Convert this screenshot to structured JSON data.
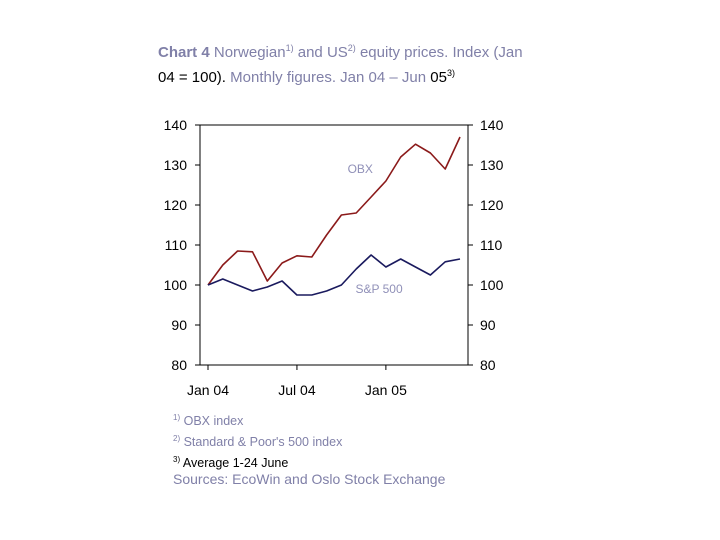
{
  "title": {
    "part1": "Chart 4",
    "part2": " Norwegian",
    "sup1": "1)",
    "part3": " and US",
    "sup2": "2)",
    "part4": " equity prices. Index (Jan",
    "part5": " 04 = 100).",
    "part6": " Monthly figures. Jan 04 – Jun",
    "part7": " 05",
    "sup3": "3)"
  },
  "notes": [
    {
      "sup": "1)",
      "text": " OBX index"
    },
    {
      "sup": "2)",
      "text": " Standard & Poor's 500 index"
    },
    {
      "sup": "3)",
      "text": " Average 1-24 June"
    }
  ],
  "sources": "Sources: EcoWin and Oslo Stock Exchange",
  "chart_data": {
    "type": "line",
    "x": [
      "Jan 04",
      "Feb 04",
      "Mar 04",
      "Apr 04",
      "May 04",
      "Jun 04",
      "Jul 04",
      "Aug 04",
      "Sep 04",
      "Oct 04",
      "Nov 04",
      "Dec 04",
      "Jan 05",
      "Feb 05",
      "Mar 05",
      "Apr 05",
      "May 05",
      "Jun 05"
    ],
    "x_tick_labels": [
      "Jan 04",
      "Jul 04",
      "Jan 05"
    ],
    "ylim": [
      80,
      140
    ],
    "y_ticks": [
      140,
      130,
      120,
      110,
      100,
      90,
      80
    ],
    "series": [
      {
        "name": "OBX",
        "color": "#8b1a1a",
        "values": [
          100,
          105,
          108.5,
          108.3,
          101,
          105.5,
          107.3,
          107,
          112.5,
          117.5,
          118,
          122,
          126,
          132,
          135.2,
          133,
          129,
          137
        ]
      },
      {
        "name": "S&P 500",
        "color": "#1a1a5e",
        "values": [
          100,
          101.5,
          100,
          98.5,
          99.5,
          101,
          97.5,
          97.5,
          98.5,
          100,
          104,
          107.5,
          104.5,
          106.5,
          104.5,
          102.5,
          105.8,
          106.5
        ]
      }
    ],
    "annotations": [
      {
        "text": "OBX",
        "series": "OBX"
      },
      {
        "text": "S&P 500",
        "series": "S&P 500"
      }
    ],
    "grid": false,
    "dual_axis_mirror": true
  }
}
